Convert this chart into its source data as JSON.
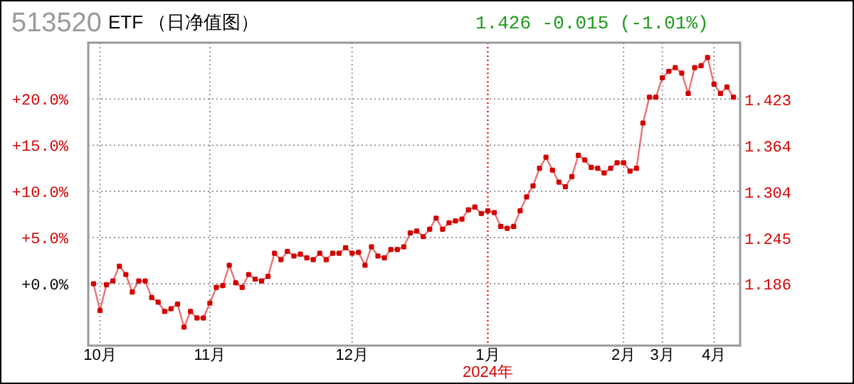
{
  "chart_data": {
    "type": "line",
    "title": "ETF （日净值图）",
    "subtitle": "513520",
    "annotations": [
      "1.426 -0.015 (-1.01%)",
      "2024年"
    ],
    "categories": [
      null,
      "10月",
      null,
      null,
      null,
      null,
      null,
      null,
      null,
      null,
      null,
      null,
      null,
      null,
      null,
      null,
      null,
      null,
      "11月",
      null,
      null,
      null,
      null,
      null,
      null,
      null,
      null,
      null,
      null,
      null,
      null,
      null,
      null,
      null,
      null,
      null,
      null,
      null,
      null,
      null,
      "12月",
      null,
      null,
      null,
      null,
      null,
      null,
      null,
      null,
      null,
      null,
      null,
      null,
      null,
      null,
      null,
      null,
      null,
      null,
      null,
      null,
      "1月",
      null,
      null,
      null,
      null,
      null,
      null,
      null,
      null,
      null,
      null,
      null,
      null,
      null,
      null,
      null,
      null,
      null,
      null,
      null,
      null,
      "2月",
      null,
      null,
      null,
      null,
      null,
      "3月",
      null,
      null,
      null,
      null,
      null,
      null,
      null,
      "4月",
      null,
      null,
      null
    ],
    "series": [
      {
        "color": "#d40000",
        "values": [
          0.0,
          -2.9,
          -0.1,
          0.3,
          1.9,
          1.0,
          -0.9,
          0.3,
          0.3,
          -1.5,
          -2.0,
          -3.0,
          -2.7,
          -2.2,
          -4.7,
          -3.0,
          -3.7,
          -3.7,
          -2.1,
          -0.4,
          -0.2,
          2.0,
          0.1,
          -0.4,
          1.0,
          0.5,
          0.3,
          0.8,
          3.3,
          2.6,
          3.5,
          3.0,
          3.2,
          2.8,
          2.6,
          3.3,
          2.6,
          3.3,
          3.3,
          3.9,
          3.3,
          3.4,
          2.0,
          4.0,
          3.0,
          2.8,
          3.7,
          3.7,
          4.0,
          5.5,
          5.7,
          5.1,
          5.9,
          7.1,
          5.9,
          6.6,
          6.8,
          7.0,
          8.0,
          8.3,
          7.6,
          7.9,
          7.7,
          6.2,
          6.0,
          6.2,
          7.9,
          9.4,
          10.6,
          12.5,
          13.7,
          12.3,
          11.0,
          10.5,
          11.6,
          13.9,
          13.4,
          12.6,
          12.5,
          12.0,
          12.5,
          13.1,
          13.1,
          12.2,
          12.5,
          17.4,
          20.2,
          20.2,
          22.3,
          23.0,
          23.4,
          22.8,
          20.6,
          23.4,
          23.6,
          24.5,
          21.6,
          20.6,
          21.3,
          20.2
        ]
      }
    ],
    "ylim": [
      -6.7,
      26.1
    ],
    "yticks": [
      {
        "value": 0,
        "label": "+0.0%"
      },
      {
        "value": 5,
        "label": "+5.0%"
      },
      {
        "value": 10,
        "label": "+10.0%"
      },
      {
        "value": 15,
        "label": "+15.0%"
      },
      {
        "value": 20,
        "label": "+20.0%"
      }
    ],
    "y2lim": [
      1.107,
      1.496
    ],
    "y2ticks": [
      1.186,
      1.245,
      1.304,
      1.364,
      1.423
    ],
    "ref_lines": [
      {
        "axis": "x",
        "value": "1月",
        "color": "#ff0000",
        "line_style": "dotted"
      }
    ],
    "grid": true,
    "marker": "square",
    "line_style": "solid"
  }
}
